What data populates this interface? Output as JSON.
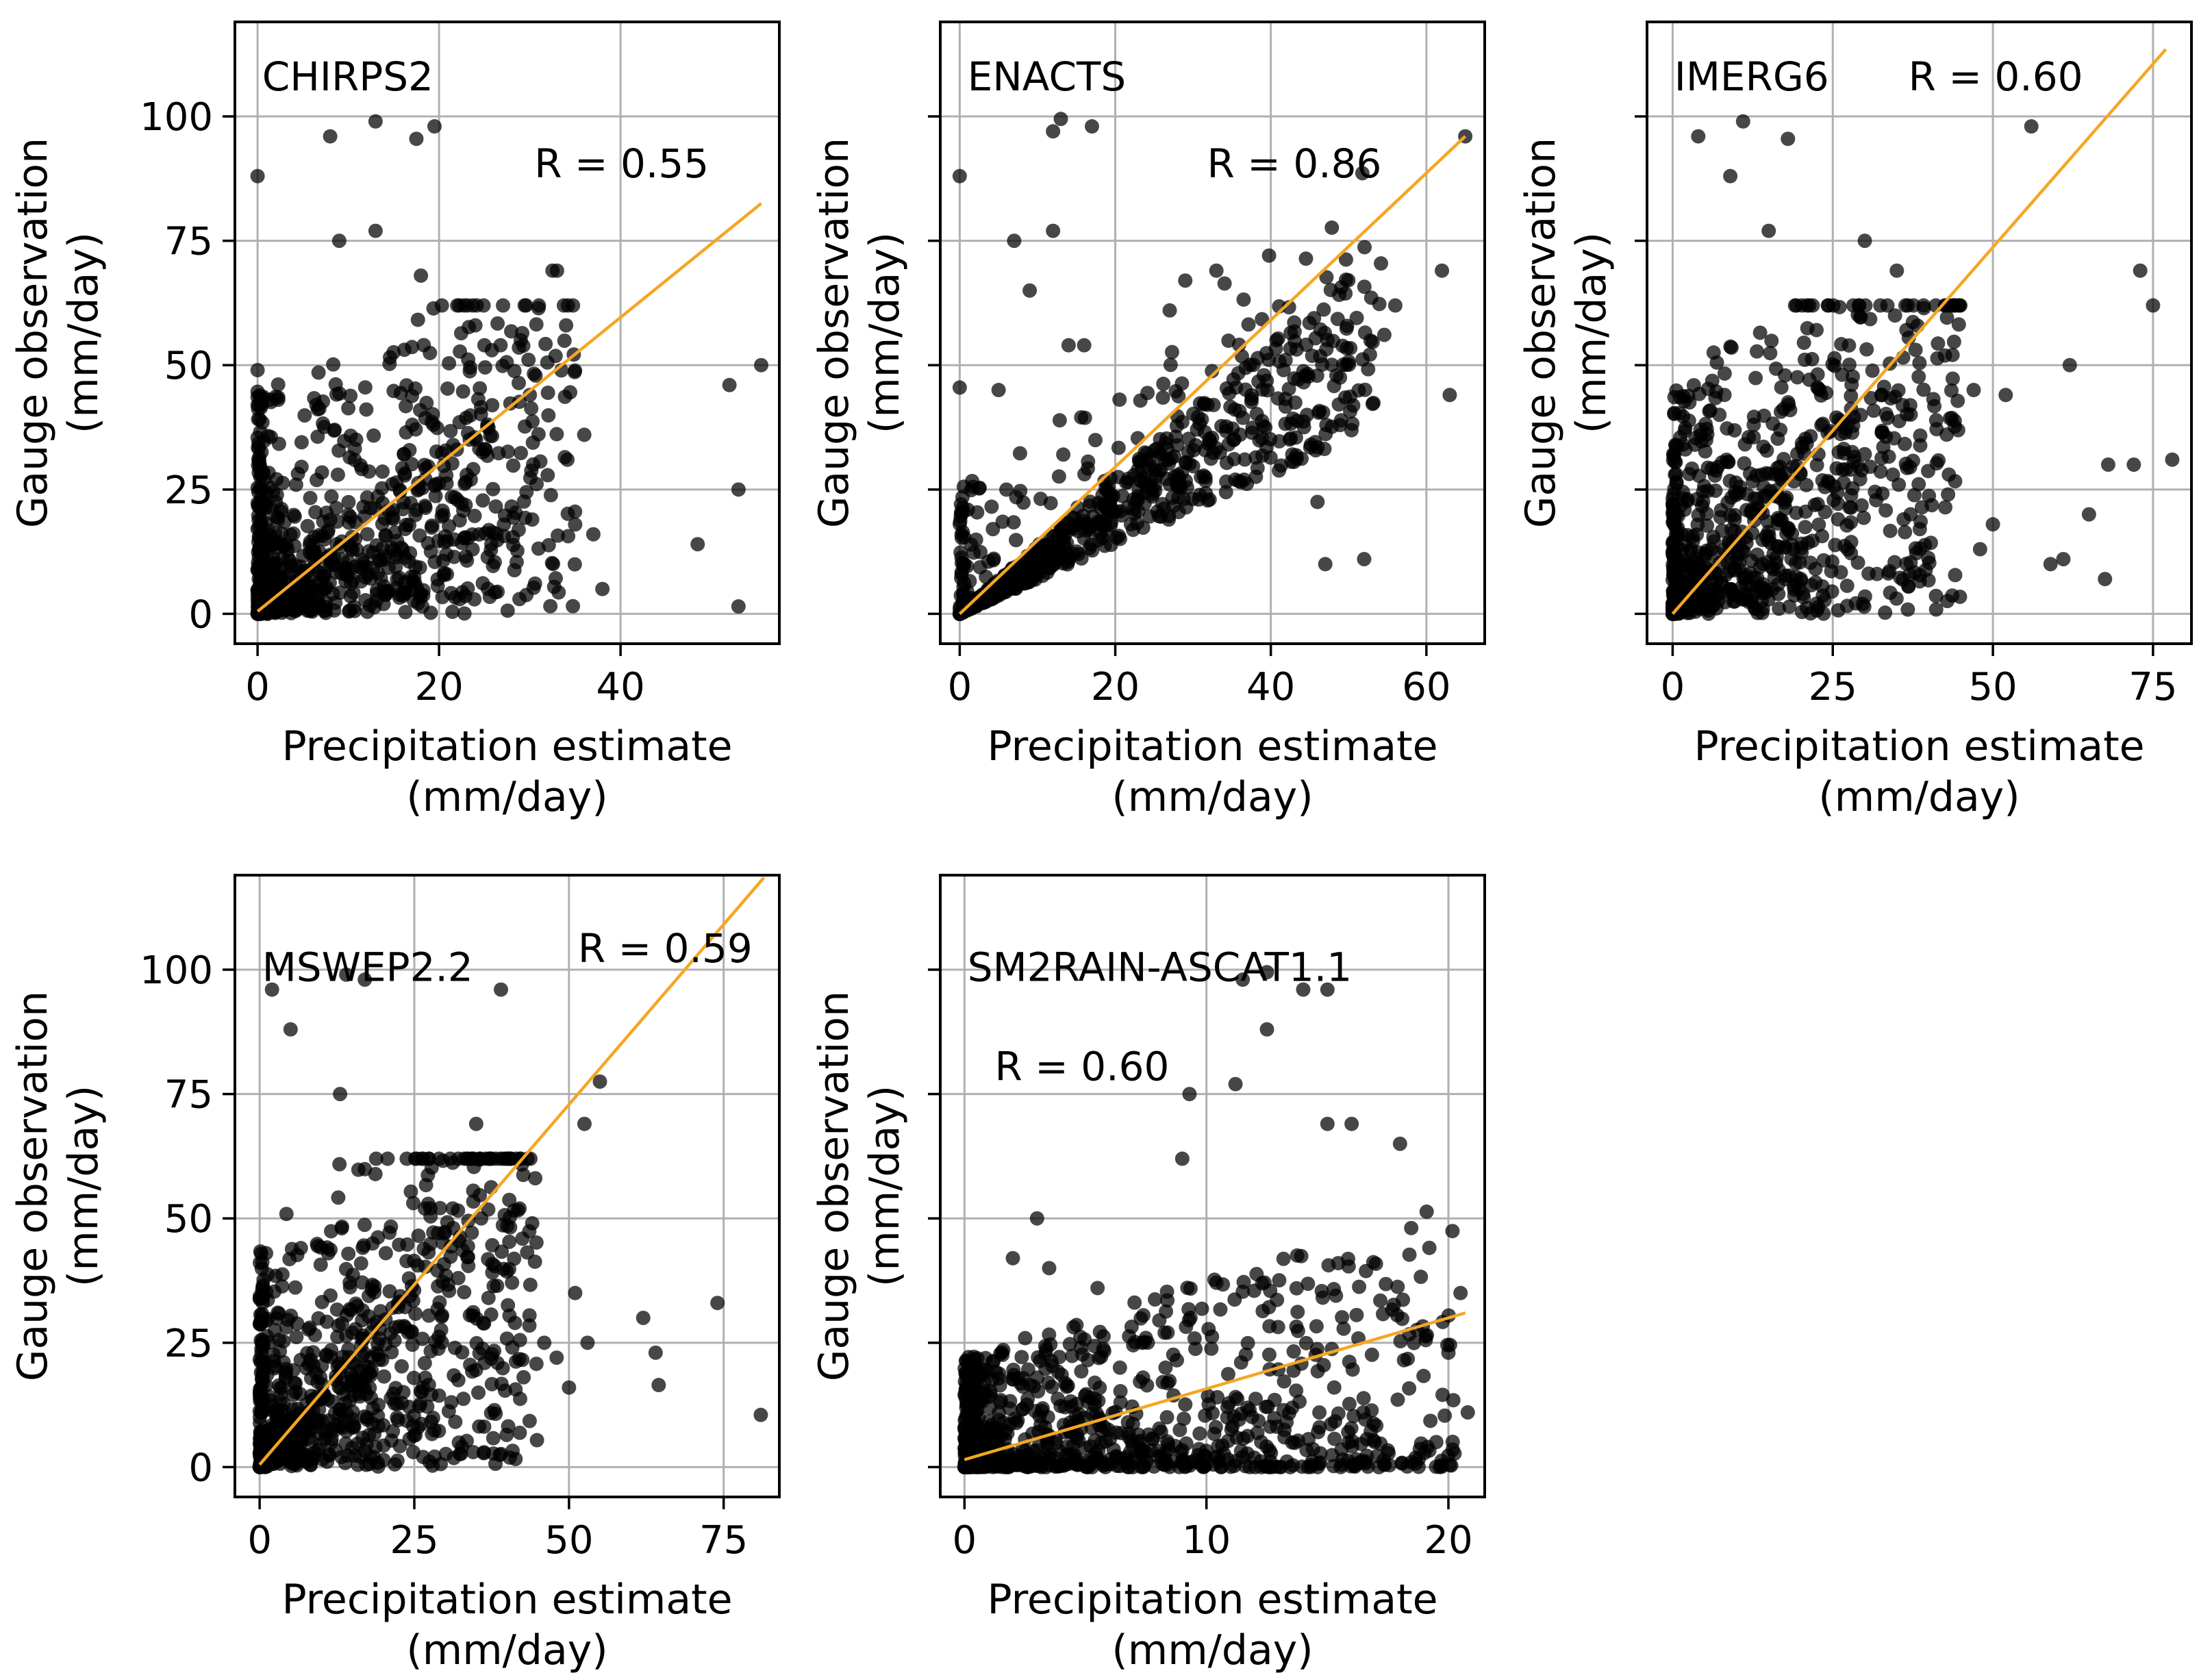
{
  "figure": {
    "colors": {
      "points": "#000000",
      "fit_line": "#f5a623",
      "grid": "#b0b0b0"
    }
  },
  "chart_data": [
    {
      "type": "scatter",
      "title": "CHIRPS2",
      "r_label": "R = 0.55",
      "xlabel": "Precipitation estimate\n(mm/day)",
      "ylabel": "Gauge observation\n(mm/day)",
      "xlim": [
        -2.5,
        57.5
      ],
      "ylim": [
        -6,
        119
      ],
      "xticks": [
        0,
        20,
        40
      ],
      "yticks": [
        0,
        25,
        50,
        75,
        100
      ],
      "show_ytick_labels": true,
      "fit_line": {
        "x": [
          0,
          55.5
        ],
        "y": [
          0.5,
          82.5
        ]
      },
      "sample_max_x": 35,
      "outliers": [
        [
          0,
          88
        ],
        [
          8,
          96
        ],
        [
          13,
          99
        ],
        [
          17.5,
          95.5
        ],
        [
          19.5,
          98
        ],
        [
          13,
          77
        ],
        [
          9,
          75
        ],
        [
          18,
          68
        ],
        [
          32.5,
          69
        ],
        [
          33,
          69
        ],
        [
          22,
          62
        ],
        [
          24,
          58
        ],
        [
          25,
          54
        ],
        [
          29,
          55
        ],
        [
          31,
          62
        ],
        [
          34,
          58
        ],
        [
          0,
          49
        ],
        [
          52,
          46
        ],
        [
          55.5,
          50
        ],
        [
          53,
          25
        ],
        [
          48.5,
          14
        ],
        [
          53,
          1.5
        ],
        [
          37,
          16
        ],
        [
          36,
          36
        ],
        [
          38,
          5
        ],
        [
          30,
          44
        ]
      ]
    },
    {
      "type": "scatter",
      "title": "ENACTS",
      "r_label": "R = 0.86",
      "xlabel": "Precipitation estimate\n(mm/day)",
      "ylabel": "Gauge observation\n(mm/day)",
      "xlim": [
        -2.5,
        67.5
      ],
      "ylim": [
        -6,
        119
      ],
      "xticks": [
        0,
        20,
        40,
        60
      ],
      "yticks": [
        0,
        25,
        50,
        75,
        100
      ],
      "show_ytick_labels": false,
      "fit_line": {
        "x": [
          0,
          65
        ],
        "y": [
          0,
          96
        ]
      },
      "sample_max_x": 55,
      "outliers": [
        [
          0,
          88
        ],
        [
          12,
          97
        ],
        [
          13,
          99.5
        ],
        [
          17,
          98
        ],
        [
          12,
          77
        ],
        [
          7,
          75
        ],
        [
          9,
          65
        ],
        [
          14,
          54
        ],
        [
          16,
          54
        ],
        [
          29,
          67
        ],
        [
          33,
          69
        ],
        [
          27,
          61
        ],
        [
          0,
          45.5
        ],
        [
          5,
          45
        ],
        [
          62,
          69
        ],
        [
          63,
          44
        ],
        [
          46,
          22.5
        ],
        [
          47,
          10
        ],
        [
          52,
          11
        ],
        [
          65,
          96
        ],
        [
          56,
          62
        ]
      ]
    },
    {
      "type": "scatter",
      "title": "IMERG6",
      "r_label": "R = 0.60",
      "xlabel": "Precipitation estimate\n(mm/day)",
      "ylabel": "Gauge observation\n(mm/day)",
      "xlim": [
        -4,
        81
      ],
      "ylim": [
        -6,
        119
      ],
      "xticks": [
        0,
        25,
        50,
        75
      ],
      "yticks": [
        0,
        25,
        50,
        75,
        100
      ],
      "show_ytick_labels": false,
      "fit_line": {
        "x": [
          0,
          77
        ],
        "y": [
          0,
          113.5
        ]
      },
      "sample_max_x": 45,
      "outliers": [
        [
          4,
          96
        ],
        [
          11,
          99
        ],
        [
          18,
          95.5
        ],
        [
          9,
          88
        ],
        [
          56,
          98
        ],
        [
          15,
          77
        ],
        [
          30,
          75
        ],
        [
          35,
          69
        ],
        [
          73,
          69
        ],
        [
          75,
          62
        ],
        [
          47,
          45
        ],
        [
          52,
          44
        ],
        [
          62,
          50
        ],
        [
          68,
          30
        ],
        [
          72,
          30
        ],
        [
          78,
          31
        ],
        [
          65,
          20
        ],
        [
          59,
          10
        ],
        [
          61,
          11
        ],
        [
          67.5,
          7
        ],
        [
          50,
          18
        ],
        [
          48,
          13
        ],
        [
          43,
          24
        ]
      ]
    },
    {
      "type": "scatter",
      "title": "MSWEP2.2",
      "r_label": "R = 0.59",
      "xlabel": "Precipitation estimate\n(mm/day)",
      "ylabel": "Gauge observation\n(mm/day)",
      "xlim": [
        -4,
        84
      ],
      "ylim": [
        -6,
        119
      ],
      "xticks": [
        0,
        25,
        50,
        75
      ],
      "yticks": [
        0,
        25,
        50,
        75,
        100
      ],
      "show_ytick_labels": true,
      "fit_line": {
        "x": [
          0,
          81.5
        ],
        "y": [
          0.5,
          118.5
        ]
      },
      "sample_max_x": 45,
      "outliers": [
        [
          2,
          96
        ],
        [
          5,
          88
        ],
        [
          14,
          99
        ],
        [
          17,
          98
        ],
        [
          39,
          96
        ],
        [
          13,
          75
        ],
        [
          55,
          77.5
        ],
        [
          52.5,
          69
        ],
        [
          35,
          69
        ],
        [
          62,
          30
        ],
        [
          64,
          23
        ],
        [
          64.5,
          16.5
        ],
        [
          74,
          33
        ],
        [
          81,
          10.5
        ],
        [
          51,
          35
        ],
        [
          48,
          22
        ],
        [
          50,
          16
        ],
        [
          53,
          25
        ],
        [
          46,
          25
        ],
        [
          42,
          52
        ]
      ]
    },
    {
      "type": "scatter",
      "title": "SM2RAIN-ASCAT1.1",
      "r_label": "R = 0.60",
      "xlabel": "Precipitation estimate\n(mm/day)",
      "ylabel": "Gauge observation\n(mm/day)",
      "xlim": [
        -1,
        21.5
      ],
      "ylim": [
        -6,
        119
      ],
      "xticks": [
        0,
        10,
        20
      ],
      "yticks": [
        0,
        25,
        50,
        75,
        100
      ],
      "show_ytick_labels": false,
      "fit_line": {
        "x": [
          0,
          20.7
        ],
        "y": [
          1.5,
          31
        ]
      },
      "sample_max_x": 20.5,
      "outliers": [
        [
          11.5,
          98
        ],
        [
          12.5,
          99.5
        ],
        [
          14,
          96
        ],
        [
          15,
          96
        ],
        [
          11.2,
          77
        ],
        [
          9.3,
          75
        ],
        [
          12.5,
          88
        ],
        [
          9,
          62
        ],
        [
          3,
          50
        ],
        [
          16,
          69
        ],
        [
          15,
          69
        ],
        [
          18,
          65
        ],
        [
          2,
          42
        ],
        [
          3.5,
          40
        ],
        [
          5.5,
          36
        ],
        [
          20,
          23
        ],
        [
          20.5,
          35
        ],
        [
          20.8,
          11
        ]
      ]
    }
  ]
}
